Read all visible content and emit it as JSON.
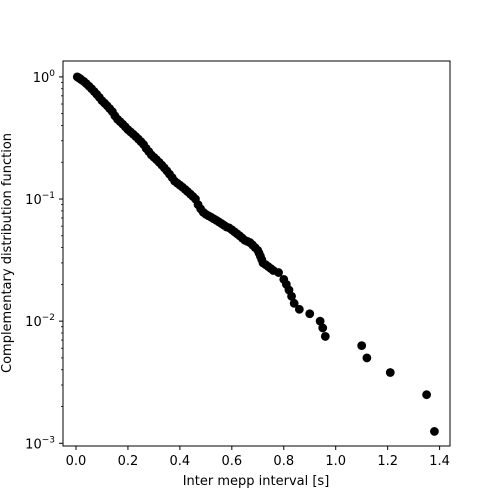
{
  "chart_data": {
    "type": "scatter",
    "title": "",
    "xlabel": "Inter mepp interval [s]",
    "ylabel": "Complementary distribution function",
    "xlim": [
      -0.05,
      1.44
    ],
    "ylim": [
      0.00095,
      1.35
    ],
    "yscale": "log",
    "grid": false,
    "marker_color": "#000000",
    "x_ticks": [
      {
        "value": 0.0,
        "label": "0.0"
      },
      {
        "value": 0.2,
        "label": "0.2"
      },
      {
        "value": 0.4,
        "label": "0.4"
      },
      {
        "value": 0.6,
        "label": "0.6"
      },
      {
        "value": 0.8,
        "label": "0.8"
      },
      {
        "value": 1.0,
        "label": "1.0"
      },
      {
        "value": 1.2,
        "label": "1.2"
      },
      {
        "value": 1.4,
        "label": "1.4"
      }
    ],
    "y_ticks": [
      {
        "value": 1,
        "base": "10",
        "exp": "0"
      },
      {
        "value": 0.1,
        "base": "10",
        "exp": "−1"
      },
      {
        "value": 0.01,
        "base": "10",
        "exp": "−2"
      },
      {
        "value": 0.001,
        "base": "10",
        "exp": "−3"
      }
    ],
    "points": [
      [
        0.005,
        1.0
      ],
      [
        0.01,
        0.985
      ],
      [
        0.015,
        0.97
      ],
      [
        0.02,
        0.95
      ],
      [
        0.03,
        0.92
      ],
      [
        0.04,
        0.88
      ],
      [
        0.05,
        0.84
      ],
      [
        0.06,
        0.8
      ],
      [
        0.07,
        0.76
      ],
      [
        0.08,
        0.72
      ],
      [
        0.09,
        0.68
      ],
      [
        0.1,
        0.64
      ],
      [
        0.11,
        0.61
      ],
      [
        0.12,
        0.58
      ],
      [
        0.13,
        0.55
      ],
      [
        0.14,
        0.52
      ],
      [
        0.15,
        0.48
      ],
      [
        0.16,
        0.45
      ],
      [
        0.17,
        0.43
      ],
      [
        0.18,
        0.41
      ],
      [
        0.19,
        0.39
      ],
      [
        0.2,
        0.37
      ],
      [
        0.21,
        0.355
      ],
      [
        0.22,
        0.34
      ],
      [
        0.23,
        0.325
      ],
      [
        0.24,
        0.31
      ],
      [
        0.25,
        0.295
      ],
      [
        0.26,
        0.28
      ],
      [
        0.27,
        0.26
      ],
      [
        0.28,
        0.245
      ],
      [
        0.29,
        0.23
      ],
      [
        0.3,
        0.22
      ],
      [
        0.31,
        0.21
      ],
      [
        0.32,
        0.2
      ],
      [
        0.33,
        0.19
      ],
      [
        0.34,
        0.18
      ],
      [
        0.35,
        0.17
      ],
      [
        0.36,
        0.16
      ],
      [
        0.37,
        0.15
      ],
      [
        0.38,
        0.14
      ],
      [
        0.39,
        0.135
      ],
      [
        0.4,
        0.13
      ],
      [
        0.41,
        0.125
      ],
      [
        0.42,
        0.12
      ],
      [
        0.43,
        0.115
      ],
      [
        0.44,
        0.11
      ],
      [
        0.45,
        0.105
      ],
      [
        0.46,
        0.1
      ],
      [
        0.47,
        0.09
      ],
      [
        0.48,
        0.083
      ],
      [
        0.49,
        0.078
      ],
      [
        0.5,
        0.075
      ],
      [
        0.51,
        0.073
      ],
      [
        0.52,
        0.071
      ],
      [
        0.53,
        0.069
      ],
      [
        0.54,
        0.067
      ],
      [
        0.55,
        0.065
      ],
      [
        0.56,
        0.063
      ],
      [
        0.57,
        0.061
      ],
      [
        0.58,
        0.059
      ],
      [
        0.59,
        0.058
      ],
      [
        0.6,
        0.056
      ],
      [
        0.61,
        0.054
      ],
      [
        0.62,
        0.052
      ],
      [
        0.63,
        0.05
      ],
      [
        0.64,
        0.048
      ],
      [
        0.65,
        0.046
      ],
      [
        0.66,
        0.045
      ],
      [
        0.67,
        0.044
      ],
      [
        0.68,
        0.042
      ],
      [
        0.69,
        0.04
      ],
      [
        0.7,
        0.038
      ],
      [
        0.705,
        0.036
      ],
      [
        0.71,
        0.034
      ],
      [
        0.715,
        0.032
      ],
      [
        0.72,
        0.03
      ],
      [
        0.73,
        0.029
      ],
      [
        0.74,
        0.028
      ],
      [
        0.75,
        0.027
      ],
      [
        0.76,
        0.026
      ],
      [
        0.78,
        0.025
      ],
      [
        0.8,
        0.022
      ],
      [
        0.81,
        0.02
      ],
      [
        0.82,
        0.018
      ],
      [
        0.83,
        0.016
      ],
      [
        0.84,
        0.014
      ],
      [
        0.86,
        0.0125
      ],
      [
        0.9,
        0.0115
      ],
      [
        0.94,
        0.01
      ],
      [
        0.95,
        0.0088
      ],
      [
        0.96,
        0.0075
      ],
      [
        1.1,
        0.0063
      ],
      [
        1.12,
        0.005
      ],
      [
        1.21,
        0.0038
      ],
      [
        1.35,
        0.0025
      ],
      [
        1.38,
        0.00125
      ]
    ]
  }
}
